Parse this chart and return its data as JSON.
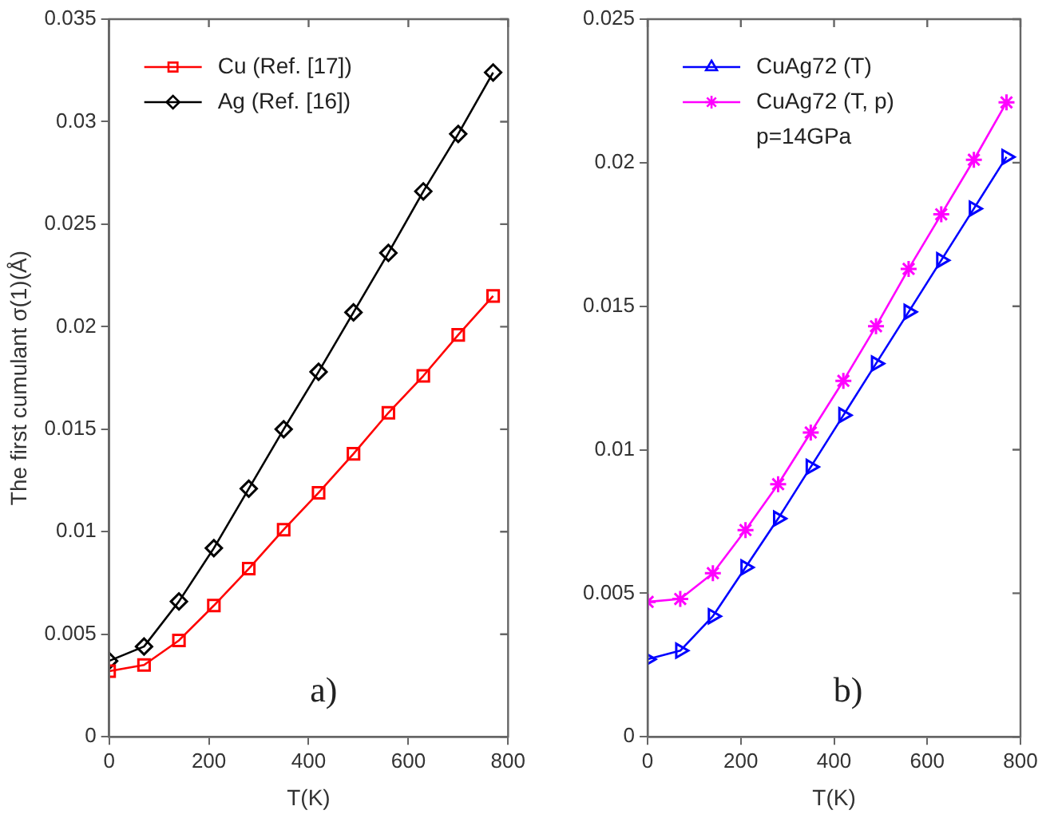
{
  "chart_data": [
    {
      "type": "line",
      "title": "a)",
      "xlabel": "T(K)",
      "ylabel": "The first cumulant σ(1)(Å)",
      "x": [
        0,
        70,
        140,
        210,
        280,
        350,
        420,
        490,
        560,
        630,
        700,
        770
      ],
      "xlim": [
        0,
        800
      ],
      "xticks": [
        0,
        200,
        400,
        600,
        800
      ],
      "ylim": [
        0,
        0.035
      ],
      "yticks": [
        0,
        0.005,
        0.01,
        0.015,
        0.02,
        0.025,
        0.03,
        0.035
      ],
      "grid": false,
      "legend": "top left",
      "series": [
        {
          "name": "Cu (Ref. [17])",
          "color": "#ff0000",
          "marker": "square",
          "values": [
            0.0032,
            0.0035,
            0.0047,
            0.0064,
            0.0082,
            0.0101,
            0.0119,
            0.0138,
            0.0158,
            0.0176,
            0.0196,
            0.0215
          ]
        },
        {
          "name": "Ag (Ref. [16])",
          "color": "#000000",
          "marker": "diamond",
          "values": [
            0.0037,
            0.0044,
            0.0066,
            0.0092,
            0.0121,
            0.015,
            0.0178,
            0.0207,
            0.0236,
            0.0266,
            0.0294,
            0.0324
          ]
        }
      ]
    },
    {
      "type": "line",
      "title": "b)",
      "xlabel": "T(K)",
      "annotations": [
        "p=14GPa"
      ],
      "x": [
        0,
        70,
        140,
        210,
        280,
        350,
        420,
        490,
        560,
        630,
        700,
        770
      ],
      "xlim": [
        0,
        800
      ],
      "xticks": [
        0,
        200,
        400,
        600,
        800
      ],
      "ylim": [
        0,
        0.025
      ],
      "yticks": [
        0,
        0.005,
        0.01,
        0.015,
        0.02,
        0.025
      ],
      "grid": false,
      "legend": "top left",
      "series": [
        {
          "name": "CuAg72 (T)",
          "color": "#0000ff",
          "marker": "triangle",
          "values": [
            0.0027,
            0.003,
            0.0042,
            0.0059,
            0.0076,
            0.0094,
            0.0112,
            0.013,
            0.0148,
            0.0166,
            0.0184,
            0.0202
          ]
        },
        {
          "name": "CuAg72 (T, p)",
          "color": "#ff00ff",
          "marker": "cross",
          "values": [
            0.0047,
            0.0048,
            0.0057,
            0.0072,
            0.0088,
            0.0106,
            0.0124,
            0.0143,
            0.0163,
            0.0182,
            0.0201,
            0.0221
          ]
        }
      ]
    }
  ]
}
